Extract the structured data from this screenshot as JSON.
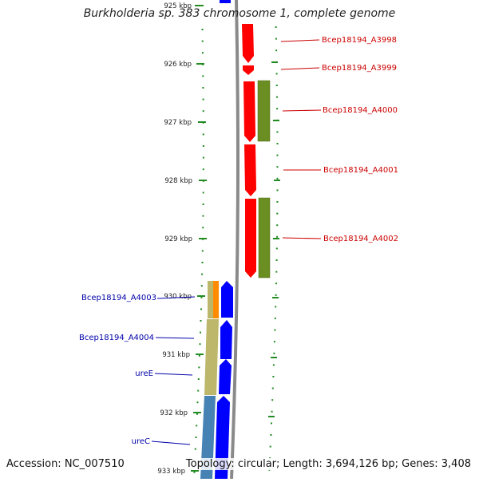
{
  "title": "Burkholderia sp. 383 chromosome 1, complete genome",
  "footer": {
    "accession": "Accession: NC_007510",
    "topology": "Topology: circular; Length: 3,694,126 bp; Genes: 3,408"
  },
  "colors": {
    "forward_gene": "#ff0000",
    "reverse_gene": "#0000ff",
    "olive_feature": "#6b8e23",
    "tan_feature": "#bdb76b",
    "orange_feature": "#ff8c00",
    "steel_feature": "#4682b4",
    "tick": "#228b22",
    "backbone": "#888888"
  },
  "ticks": [
    {
      "label": "925 kbp"
    },
    {
      "label": "926 kbp"
    },
    {
      "label": "927 kbp"
    },
    {
      "label": "928 kbp"
    },
    {
      "label": "929 kbp"
    },
    {
      "label": "930 kbp"
    },
    {
      "label": "931 kbp"
    },
    {
      "label": "932 kbp"
    },
    {
      "label": "933 kbp"
    }
  ],
  "genes_forward": [
    {
      "label": "Bcep18194_A3998"
    },
    {
      "label": "Bcep18194_A3999"
    },
    {
      "label": "Bcep18194_A4000"
    },
    {
      "label": "Bcep18194_A4001"
    },
    {
      "label": "Bcep18194_A4002"
    }
  ],
  "genes_reverse": [
    {
      "label": "Bcep18194_A4003"
    },
    {
      "label": "Bcep18194_A4004"
    },
    {
      "label": "ureE"
    },
    {
      "label": "ureC"
    }
  ]
}
